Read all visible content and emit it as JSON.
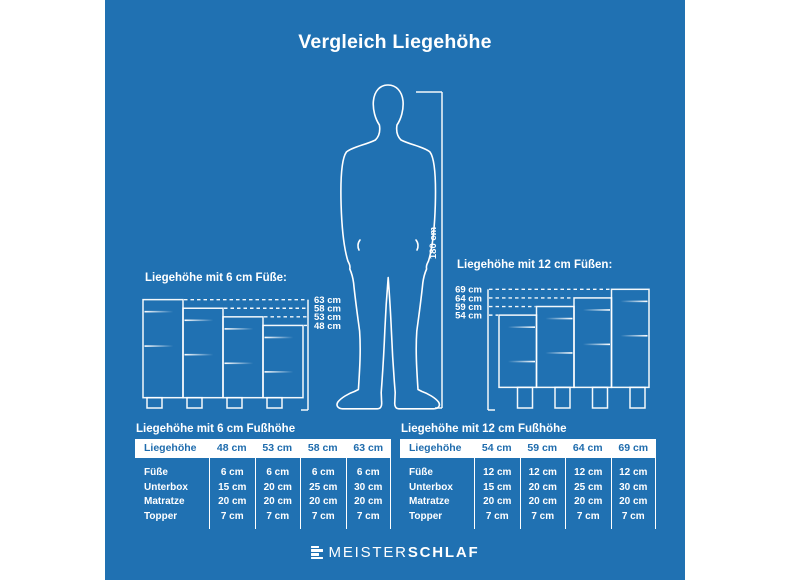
{
  "page": {
    "title": "Vergleich Liegehöhe",
    "panel_color": "#2071b2",
    "text_color": "#ffffff",
    "table_header_text_color": "#1f6cad"
  },
  "figure": {
    "person_height_label": "180 cm",
    "left_group": {
      "heading": "Liegehöhe mit 6 cm Füße:",
      "foot_height_cm": 6,
      "beds": [
        {
          "label": "63 cm",
          "total_cm": 63,
          "fuesse_cm": 6,
          "unterbox_cm": 30,
          "matratze_cm": 20,
          "topper_cm": 7
        },
        {
          "label": "58 cm",
          "total_cm": 58,
          "fuesse_cm": 6,
          "unterbox_cm": 25,
          "matratze_cm": 20,
          "topper_cm": 7
        },
        {
          "label": "53 cm",
          "total_cm": 53,
          "fuesse_cm": 6,
          "unterbox_cm": 20,
          "matratze_cm": 20,
          "topper_cm": 7
        },
        {
          "label": "48 cm",
          "total_cm": 48,
          "fuesse_cm": 6,
          "unterbox_cm": 15,
          "matratze_cm": 20,
          "topper_cm": 7
        }
      ]
    },
    "right_group": {
      "heading": "Liegehöhe mit 12 cm Füßen:",
      "foot_height_cm": 12,
      "beds": [
        {
          "label": "54 cm",
          "total_cm": 54,
          "fuesse_cm": 12,
          "unterbox_cm": 15,
          "matratze_cm": 20,
          "topper_cm": 7
        },
        {
          "label": "59 cm",
          "total_cm": 59,
          "fuesse_cm": 12,
          "unterbox_cm": 20,
          "matratze_cm": 20,
          "topper_cm": 7
        },
        {
          "label": "64 cm",
          "total_cm": 64,
          "fuesse_cm": 12,
          "unterbox_cm": 25,
          "matratze_cm": 20,
          "topper_cm": 7
        },
        {
          "label": "69 cm",
          "total_cm": 69,
          "fuesse_cm": 12,
          "unterbox_cm": 30,
          "matratze_cm": 20,
          "topper_cm": 7
        }
      ]
    }
  },
  "tables": [
    {
      "title": "Liegehöhe mit 6 cm Fußhöhe",
      "header": [
        "Liegehöhe",
        "48 cm",
        "53 cm",
        "58 cm",
        "63 cm"
      ],
      "rows": [
        {
          "label": "Füße",
          "values": [
            "6 cm",
            "6 cm",
            "6 cm",
            "6 cm"
          ]
        },
        {
          "label": "Unterbox",
          "values": [
            "15 cm",
            "20 cm",
            "25 cm",
            "30 cm"
          ]
        },
        {
          "label": "Matratze",
          "values": [
            "20 cm",
            "20 cm",
            "20 cm",
            "20 cm"
          ]
        },
        {
          "label": "Topper",
          "values": [
            "7 cm",
            "7 cm",
            "7 cm",
            "7 cm"
          ]
        }
      ]
    },
    {
      "title": "Liegehöhe mit 12 cm Fußhöhe",
      "header": [
        "Liegehöhe",
        "54 cm",
        "59 cm",
        "64 cm",
        "69 cm"
      ],
      "rows": [
        {
          "label": "Füße",
          "values": [
            "12 cm",
            "12 cm",
            "12 cm",
            "12 cm"
          ]
        },
        {
          "label": "Unterbox",
          "values": [
            "15 cm",
            "20 cm",
            "25 cm",
            "30 cm"
          ]
        },
        {
          "label": "Matratze",
          "values": [
            "20 cm",
            "20 cm",
            "20 cm",
            "20 cm"
          ]
        },
        {
          "label": "Topper",
          "values": [
            "7 cm",
            "7 cm",
            "7 cm",
            "7 cm"
          ]
        }
      ]
    }
  ],
  "logo": {
    "prefix": "MEISTER",
    "suffix": "SCHLAF"
  }
}
